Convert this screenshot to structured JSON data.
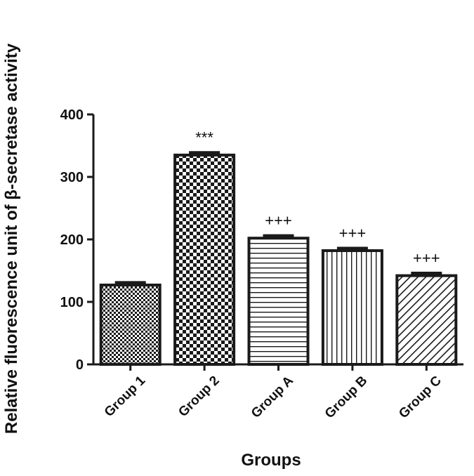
{
  "chart_data": {
    "type": "bar",
    "title": "",
    "xlabel": "Groups",
    "ylabel": "Relative fluorescence unit of β-secretase activity",
    "ylim": [
      0,
      400
    ],
    "yticks": [
      "0",
      "100",
      "200",
      "300",
      "400"
    ],
    "categories": [
      "Group 1",
      "Group 2",
      "Group A",
      "Group B",
      "Group C"
    ],
    "values": [
      127,
      335,
      202,
      182,
      142
    ],
    "errors": [
      4,
      4,
      4,
      4,
      4
    ],
    "annotations": [
      "",
      "***",
      "+++",
      "+++",
      "+++"
    ],
    "patterns": [
      "fine-check",
      "checkerboard",
      "horizontal-lines",
      "vertical-lines",
      "diagonal-lines"
    ],
    "colors": {
      "bar_fill": "#ffffff",
      "pattern": "#1a1a1a",
      "axis": "#1a1a1a"
    },
    "grid": false,
    "legend": "none"
  }
}
